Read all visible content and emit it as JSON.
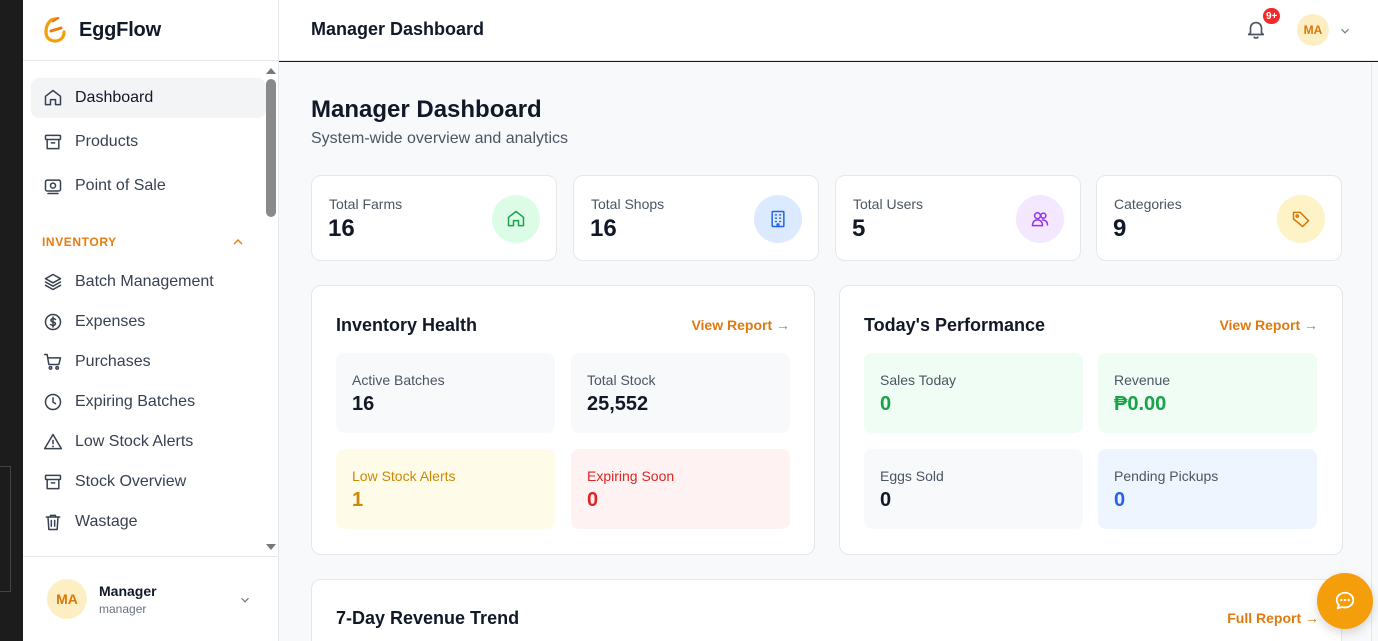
{
  "app": {
    "name": "EggFlow"
  },
  "sidebar": {
    "items": [
      {
        "label": "Dashboard",
        "icon": "home-icon",
        "active": true
      },
      {
        "label": "Products",
        "icon": "archive-icon"
      },
      {
        "label": "Point of Sale",
        "icon": "register-icon"
      }
    ],
    "section": {
      "label": "INVENTORY",
      "icon": "chevron-up-icon"
    },
    "inventory_items": [
      {
        "label": "Batch Management",
        "icon": "layers-icon"
      },
      {
        "label": "Expenses",
        "icon": "dollar-circle-icon"
      },
      {
        "label": "Purchases",
        "icon": "cart-icon"
      },
      {
        "label": "Expiring Batches",
        "icon": "clock-icon"
      },
      {
        "label": "Low Stock Alerts",
        "icon": "warning-icon"
      },
      {
        "label": "Stock Overview",
        "icon": "archive-icon"
      },
      {
        "label": "Wastage",
        "icon": "trash-icon"
      }
    ],
    "user": {
      "initials": "MA",
      "name": "Manager",
      "role": "manager"
    }
  },
  "topbar": {
    "title": "Manager Dashboard",
    "notifications_badge": "9+",
    "avatar_initials": "MA"
  },
  "main": {
    "title": "Manager Dashboard",
    "subtitle": "System-wide overview and analytics",
    "stats": [
      {
        "label": "Total Farms",
        "value": "16",
        "icon": "home-icon",
        "color": "#16a34a",
        "bg": "#dcfce7"
      },
      {
        "label": "Total Shops",
        "value": "16",
        "icon": "building-icon",
        "color": "#2563eb",
        "bg": "#dbeafe"
      },
      {
        "label": "Total Users",
        "value": "5",
        "icon": "users-icon",
        "color": "#9333ea",
        "bg": "#f3e8ff"
      },
      {
        "label": "Categories",
        "value": "9",
        "icon": "tag-icon",
        "color": "#d97706",
        "bg": "#fef3c7"
      }
    ],
    "inventory_health": {
      "title": "Inventory Health",
      "link": "View Report →",
      "tiles": [
        {
          "label": "Active Batches",
          "value": "16"
        },
        {
          "label": "Total Stock",
          "value": "25,552"
        },
        {
          "label": "Low Stock Alerts",
          "value": "1"
        },
        {
          "label": "Expiring Soon",
          "value": "0"
        }
      ]
    },
    "performance": {
      "title": "Today's Performance",
      "link": "View Report →",
      "tiles": [
        {
          "label": "Sales Today",
          "value": "0"
        },
        {
          "label": "Revenue",
          "value": "₱0.00"
        },
        {
          "label": "Eggs Sold",
          "value": "0"
        },
        {
          "label": "Pending Pickups",
          "value": "0"
        }
      ]
    },
    "revenue_trend": {
      "title": "7-Day Revenue Trend",
      "link": "Full Report →"
    }
  }
}
